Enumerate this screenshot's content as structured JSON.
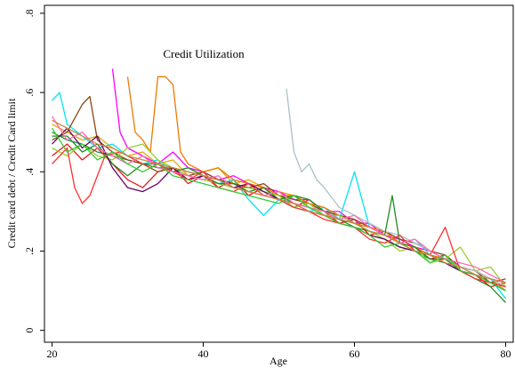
{
  "chart_data": {
    "type": "line",
    "title": "",
    "annotation": "Credit Utilization",
    "xlabel": "Age",
    "ylabel": "Credit card debt / Credit Card limit",
    "xlim": [
      19,
      81
    ],
    "ylim": [
      -0.03,
      0.82
    ],
    "xticks": [
      20,
      40,
      60,
      80
    ],
    "yticks": [
      0,
      0.2,
      0.4,
      0.6,
      0.8
    ],
    "ytick_labels": [
      "0",
      ".2",
      ".4",
      ".6",
      ".8"
    ],
    "grid": false,
    "legend": "none",
    "series": [
      {
        "color": "#1a9641",
        "x": [
          20,
          22,
          24,
          26,
          28,
          30,
          32,
          34,
          36,
          38,
          40,
          42,
          44,
          46,
          48,
          50,
          52,
          54,
          56,
          58,
          60,
          62,
          64,
          66,
          68,
          70,
          72,
          74,
          76,
          78,
          80
        ],
        "y": [
          0.5,
          0.48,
          0.47,
          0.45,
          0.44,
          0.43,
          0.42,
          0.41,
          0.41,
          0.4,
          0.39,
          0.38,
          0.37,
          0.36,
          0.35,
          0.34,
          0.32,
          0.31,
          0.29,
          0.28,
          0.26,
          0.25,
          0.23,
          0.21,
          0.2,
          0.18,
          0.17,
          0.15,
          0.13,
          0.12,
          0.11
        ]
      },
      {
        "color": "#e41a1c",
        "x": [
          20,
          22,
          24,
          26,
          28,
          30,
          32,
          34,
          36,
          38,
          40,
          42,
          44,
          46,
          48,
          50,
          52,
          54,
          56,
          58,
          60,
          62,
          64,
          66,
          68,
          70,
          72,
          74,
          76,
          78,
          80
        ],
        "y": [
          0.44,
          0.47,
          0.43,
          0.46,
          0.42,
          0.38,
          0.36,
          0.4,
          0.41,
          0.37,
          0.39,
          0.36,
          0.38,
          0.34,
          0.36,
          0.33,
          0.31,
          0.33,
          0.3,
          0.27,
          0.28,
          0.24,
          0.25,
          0.22,
          0.21,
          0.18,
          0.19,
          0.15,
          0.14,
          0.11,
          0.12
        ]
      },
      {
        "color": "#e6a700",
        "x": [
          20,
          22,
          24,
          26,
          28,
          30,
          32,
          34,
          36,
          38,
          40,
          42,
          44,
          46,
          48,
          50,
          52,
          54,
          56,
          58,
          60,
          62,
          64,
          66,
          68,
          70,
          72,
          74,
          76,
          78,
          80
        ],
        "y": [
          0.52,
          0.5,
          0.48,
          0.49,
          0.46,
          0.44,
          0.45,
          0.42,
          0.43,
          0.39,
          0.4,
          0.41,
          0.37,
          0.38,
          0.36,
          0.35,
          0.34,
          0.32,
          0.3,
          0.29,
          0.27,
          0.26,
          0.24,
          0.22,
          0.21,
          0.19,
          0.17,
          0.16,
          0.14,
          0.13,
          0.1
        ]
      },
      {
        "color": "#ff00ff",
        "x": [
          28,
          29,
          30,
          32,
          34,
          36,
          38,
          40,
          42,
          44,
          46,
          48,
          50,
          52,
          54,
          56,
          58,
          60,
          62,
          64,
          66,
          68,
          70,
          72,
          74,
          76,
          78,
          80
        ],
        "y": [
          0.66,
          0.5,
          0.46,
          0.44,
          0.42,
          0.45,
          0.41,
          0.4,
          0.38,
          0.39,
          0.37,
          0.36,
          0.35,
          0.33,
          0.33,
          0.3,
          0.3,
          0.27,
          0.27,
          0.24,
          0.23,
          0.21,
          0.2,
          0.18,
          0.16,
          0.15,
          0.13,
          0.12
        ]
      },
      {
        "color": "#00e5ee",
        "x": [
          20,
          21,
          22,
          24,
          26,
          28,
          30,
          32,
          34,
          36,
          38,
          40,
          42,
          44,
          46,
          48,
          50,
          52,
          54,
          56,
          58,
          60,
          62,
          64,
          66,
          68,
          70,
          72,
          74,
          76,
          78,
          80
        ],
        "y": [
          0.58,
          0.6,
          0.52,
          0.49,
          0.46,
          0.47,
          0.44,
          0.42,
          0.43,
          0.4,
          0.41,
          0.39,
          0.37,
          0.38,
          0.33,
          0.29,
          0.33,
          0.31,
          0.3,
          0.31,
          0.28,
          0.4,
          0.26,
          0.24,
          0.22,
          0.23,
          0.19,
          0.18,
          0.16,
          0.14,
          0.13,
          0.08
        ]
      },
      {
        "color": "#8b4513",
        "x": [
          20,
          22,
          24,
          25,
          26,
          28,
          30,
          32,
          34,
          36,
          38,
          40,
          42,
          44,
          46,
          48,
          50,
          52,
          54,
          56,
          58,
          60,
          62,
          64,
          66,
          68,
          70,
          72,
          74,
          76,
          78,
          80
        ],
        "y": [
          0.48,
          0.5,
          0.57,
          0.59,
          0.48,
          0.45,
          0.43,
          0.42,
          0.4,
          0.41,
          0.39,
          0.4,
          0.38,
          0.37,
          0.36,
          0.37,
          0.34,
          0.33,
          0.32,
          0.3,
          0.29,
          0.28,
          0.26,
          0.25,
          0.23,
          0.22,
          0.2,
          0.19,
          0.16,
          0.15,
          0.12,
          0.13
        ]
      },
      {
        "color": "#f07800",
        "x": [
          30,
          31,
          32,
          33,
          34,
          35,
          36,
          37,
          38,
          40,
          42,
          44,
          46,
          48,
          50,
          52,
          54,
          56,
          58,
          60,
          62,
          64,
          66,
          68,
          70,
          72,
          74,
          76,
          78,
          80
        ],
        "y": [
          0.64,
          0.5,
          0.48,
          0.45,
          0.64,
          0.64,
          0.62,
          0.45,
          0.42,
          0.4,
          0.41,
          0.38,
          0.37,
          0.36,
          0.34,
          0.34,
          0.32,
          0.31,
          0.29,
          0.27,
          0.26,
          0.25,
          0.22,
          0.21,
          0.19,
          0.18,
          0.16,
          0.15,
          0.13,
          0.11
        ]
      },
      {
        "color": "#9acd32",
        "x": [
          20,
          22,
          24,
          26,
          28,
          30,
          32,
          34,
          36,
          38,
          40,
          42,
          44,
          46,
          48,
          50,
          52,
          54,
          56,
          58,
          60,
          62,
          64,
          66,
          68,
          70,
          72,
          74,
          76,
          78,
          80
        ],
        "y": [
          0.46,
          0.44,
          0.47,
          0.44,
          0.43,
          0.46,
          0.47,
          0.43,
          0.41,
          0.39,
          0.38,
          0.37,
          0.36,
          0.36,
          0.35,
          0.34,
          0.31,
          0.32,
          0.29,
          0.29,
          0.27,
          0.25,
          0.23,
          0.2,
          0.21,
          0.17,
          0.18,
          0.21,
          0.15,
          0.16,
          0.11
        ]
      },
      {
        "color": "#a9c1c8",
        "x": [
          51,
          52,
          53,
          54,
          55,
          56,
          58,
          60,
          62,
          64,
          66,
          68,
          70,
          72,
          74,
          76,
          78,
          80
        ],
        "y": [
          0.61,
          0.45,
          0.4,
          0.42,
          0.38,
          0.36,
          0.31,
          0.29,
          0.27,
          0.25,
          0.24,
          0.22,
          0.2,
          0.18,
          0.16,
          0.15,
          0.13,
          0.11
        ]
      },
      {
        "color": "#228b22",
        "x": [
          20,
          22,
          24,
          26,
          28,
          30,
          32,
          34,
          36,
          38,
          40,
          42,
          44,
          46,
          48,
          50,
          52,
          54,
          56,
          58,
          60,
          62,
          64,
          65,
          66,
          68,
          70,
          72,
          74,
          76,
          78,
          80
        ],
        "y": [
          0.49,
          0.49,
          0.45,
          0.47,
          0.42,
          0.39,
          0.42,
          0.42,
          0.4,
          0.41,
          0.39,
          0.37,
          0.37,
          0.35,
          0.36,
          0.33,
          0.34,
          0.33,
          0.3,
          0.28,
          0.27,
          0.25,
          0.24,
          0.34,
          0.22,
          0.21,
          0.18,
          0.18,
          0.15,
          0.13,
          0.11,
          0.07
        ]
      },
      {
        "color": "#660066",
        "x": [
          20,
          22,
          24,
          26,
          28,
          30,
          32,
          34,
          36,
          38,
          40,
          42,
          44,
          46,
          48,
          50,
          52,
          54,
          56,
          58,
          60,
          62,
          64,
          66,
          68,
          70,
          72,
          74,
          76,
          78,
          80
        ],
        "y": [
          0.47,
          0.51,
          0.46,
          0.49,
          0.41,
          0.36,
          0.35,
          0.37,
          0.41,
          0.38,
          0.39,
          0.38,
          0.36,
          0.37,
          0.35,
          0.33,
          0.32,
          0.3,
          0.29,
          0.27,
          0.26,
          0.24,
          0.23,
          0.21,
          0.2,
          0.19,
          0.17,
          0.15,
          0.14,
          0.12,
          0.1
        ]
      },
      {
        "color": "#ff3030",
        "x": [
          20,
          22,
          23,
          24,
          25,
          27,
          29,
          31,
          33,
          34,
          36,
          38,
          40,
          42,
          44,
          46,
          48,
          50,
          52,
          54,
          56,
          58,
          60,
          62,
          64,
          66,
          68,
          70,
          72,
          74,
          76,
          78,
          80
        ],
        "y": [
          0.42,
          0.46,
          0.36,
          0.32,
          0.34,
          0.44,
          0.45,
          0.43,
          0.41,
          0.42,
          0.4,
          0.38,
          0.4,
          0.36,
          0.35,
          0.37,
          0.34,
          0.33,
          0.31,
          0.3,
          0.28,
          0.27,
          0.26,
          0.23,
          0.22,
          0.24,
          0.2,
          0.19,
          0.26,
          0.15,
          0.13,
          0.12,
          0.11
        ]
      },
      {
        "color": "#ff69b4",
        "x": [
          20,
          22,
          24,
          26,
          28,
          30,
          32,
          34,
          36,
          38,
          40,
          42,
          44,
          46,
          48,
          50,
          52,
          54,
          56,
          58,
          60,
          62,
          64,
          66,
          68,
          70,
          72,
          74,
          76,
          78,
          80
        ],
        "y": [
          0.54,
          0.48,
          0.5,
          0.46,
          0.44,
          0.42,
          0.44,
          0.41,
          0.4,
          0.39,
          0.38,
          0.39,
          0.36,
          0.35,
          0.34,
          0.35,
          0.32,
          0.31,
          0.3,
          0.28,
          0.29,
          0.26,
          0.24,
          0.22,
          0.23,
          0.2,
          0.18,
          0.17,
          0.16,
          0.14,
          0.12
        ]
      },
      {
        "color": "#32cd32",
        "x": [
          20,
          22,
          24,
          26,
          28,
          30,
          32,
          34,
          36,
          38,
          40,
          42,
          44,
          46,
          48,
          50,
          52,
          54,
          56,
          58,
          60,
          62,
          64,
          66,
          68,
          70,
          72,
          74,
          76,
          78,
          80
        ],
        "y": [
          0.51,
          0.45,
          0.47,
          0.43,
          0.45,
          0.42,
          0.4,
          0.42,
          0.39,
          0.38,
          0.37,
          0.36,
          0.35,
          0.34,
          0.33,
          0.32,
          0.34,
          0.31,
          0.29,
          0.27,
          0.26,
          0.24,
          0.21,
          0.22,
          0.2,
          0.17,
          0.19,
          0.15,
          0.14,
          0.12,
          0.1
        ]
      },
      {
        "color": "#cd853f",
        "x": [
          20,
          22,
          24,
          26,
          28,
          30,
          32,
          34,
          36,
          38,
          40,
          42,
          44,
          46,
          48,
          50,
          52,
          54,
          56,
          58,
          60,
          62,
          64,
          66,
          68,
          70,
          72,
          74,
          76,
          78,
          80
        ],
        "y": [
          0.53,
          0.51,
          0.49,
          0.47,
          0.46,
          0.44,
          0.43,
          0.42,
          0.41,
          0.4,
          0.39,
          0.38,
          0.36,
          0.35,
          0.34,
          0.33,
          0.32,
          0.3,
          0.29,
          0.28,
          0.27,
          0.25,
          0.24,
          0.22,
          0.2,
          0.19,
          0.17,
          0.16,
          0.14,
          0.13,
          0.12
        ]
      }
    ]
  }
}
